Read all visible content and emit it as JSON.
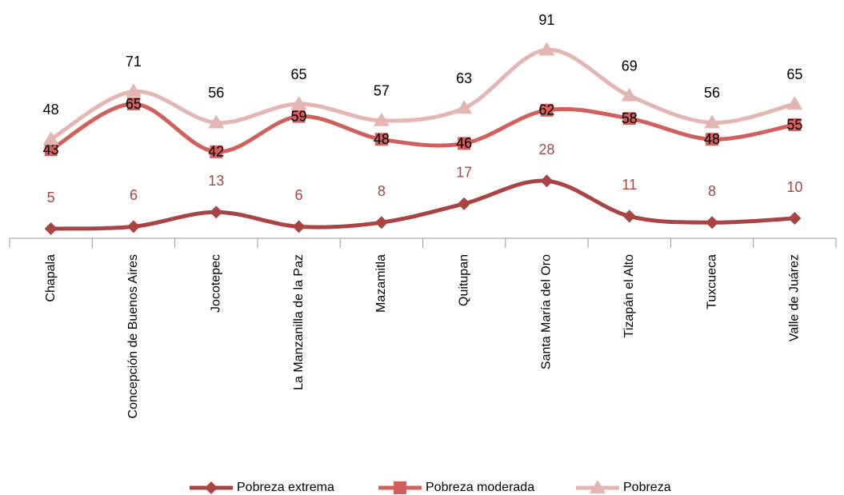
{
  "chart_data": {
    "type": "line",
    "categories": [
      "Chapala",
      "Concepción de Buenos Aires",
      "Jocotepec",
      "La Manzanilla de la Paz",
      "Mazamitla",
      "Quitupan",
      "Santa María del Oro",
      "Tizapán el Alto",
      "Tuxcueca",
      "Valle de Juárez"
    ],
    "series": [
      {
        "name": "Pobreza extrema",
        "color": "#a84444",
        "marker": "diamond",
        "values": [
          5,
          6,
          13,
          6,
          8,
          17,
          28,
          11,
          8,
          10
        ]
      },
      {
        "name": "Pobreza moderada",
        "color": "#d0605c",
        "marker": "square",
        "values": [
          43,
          65,
          42,
          59,
          48,
          46,
          62,
          58,
          48,
          55
        ]
      },
      {
        "name": "Pobreza",
        "color": "#e3b5b3",
        "marker": "triangle",
        "values": [
          48,
          71,
          56,
          65,
          57,
          63,
          91,
          69,
          56,
          65
        ]
      }
    ],
    "legend": "bottom"
  }
}
